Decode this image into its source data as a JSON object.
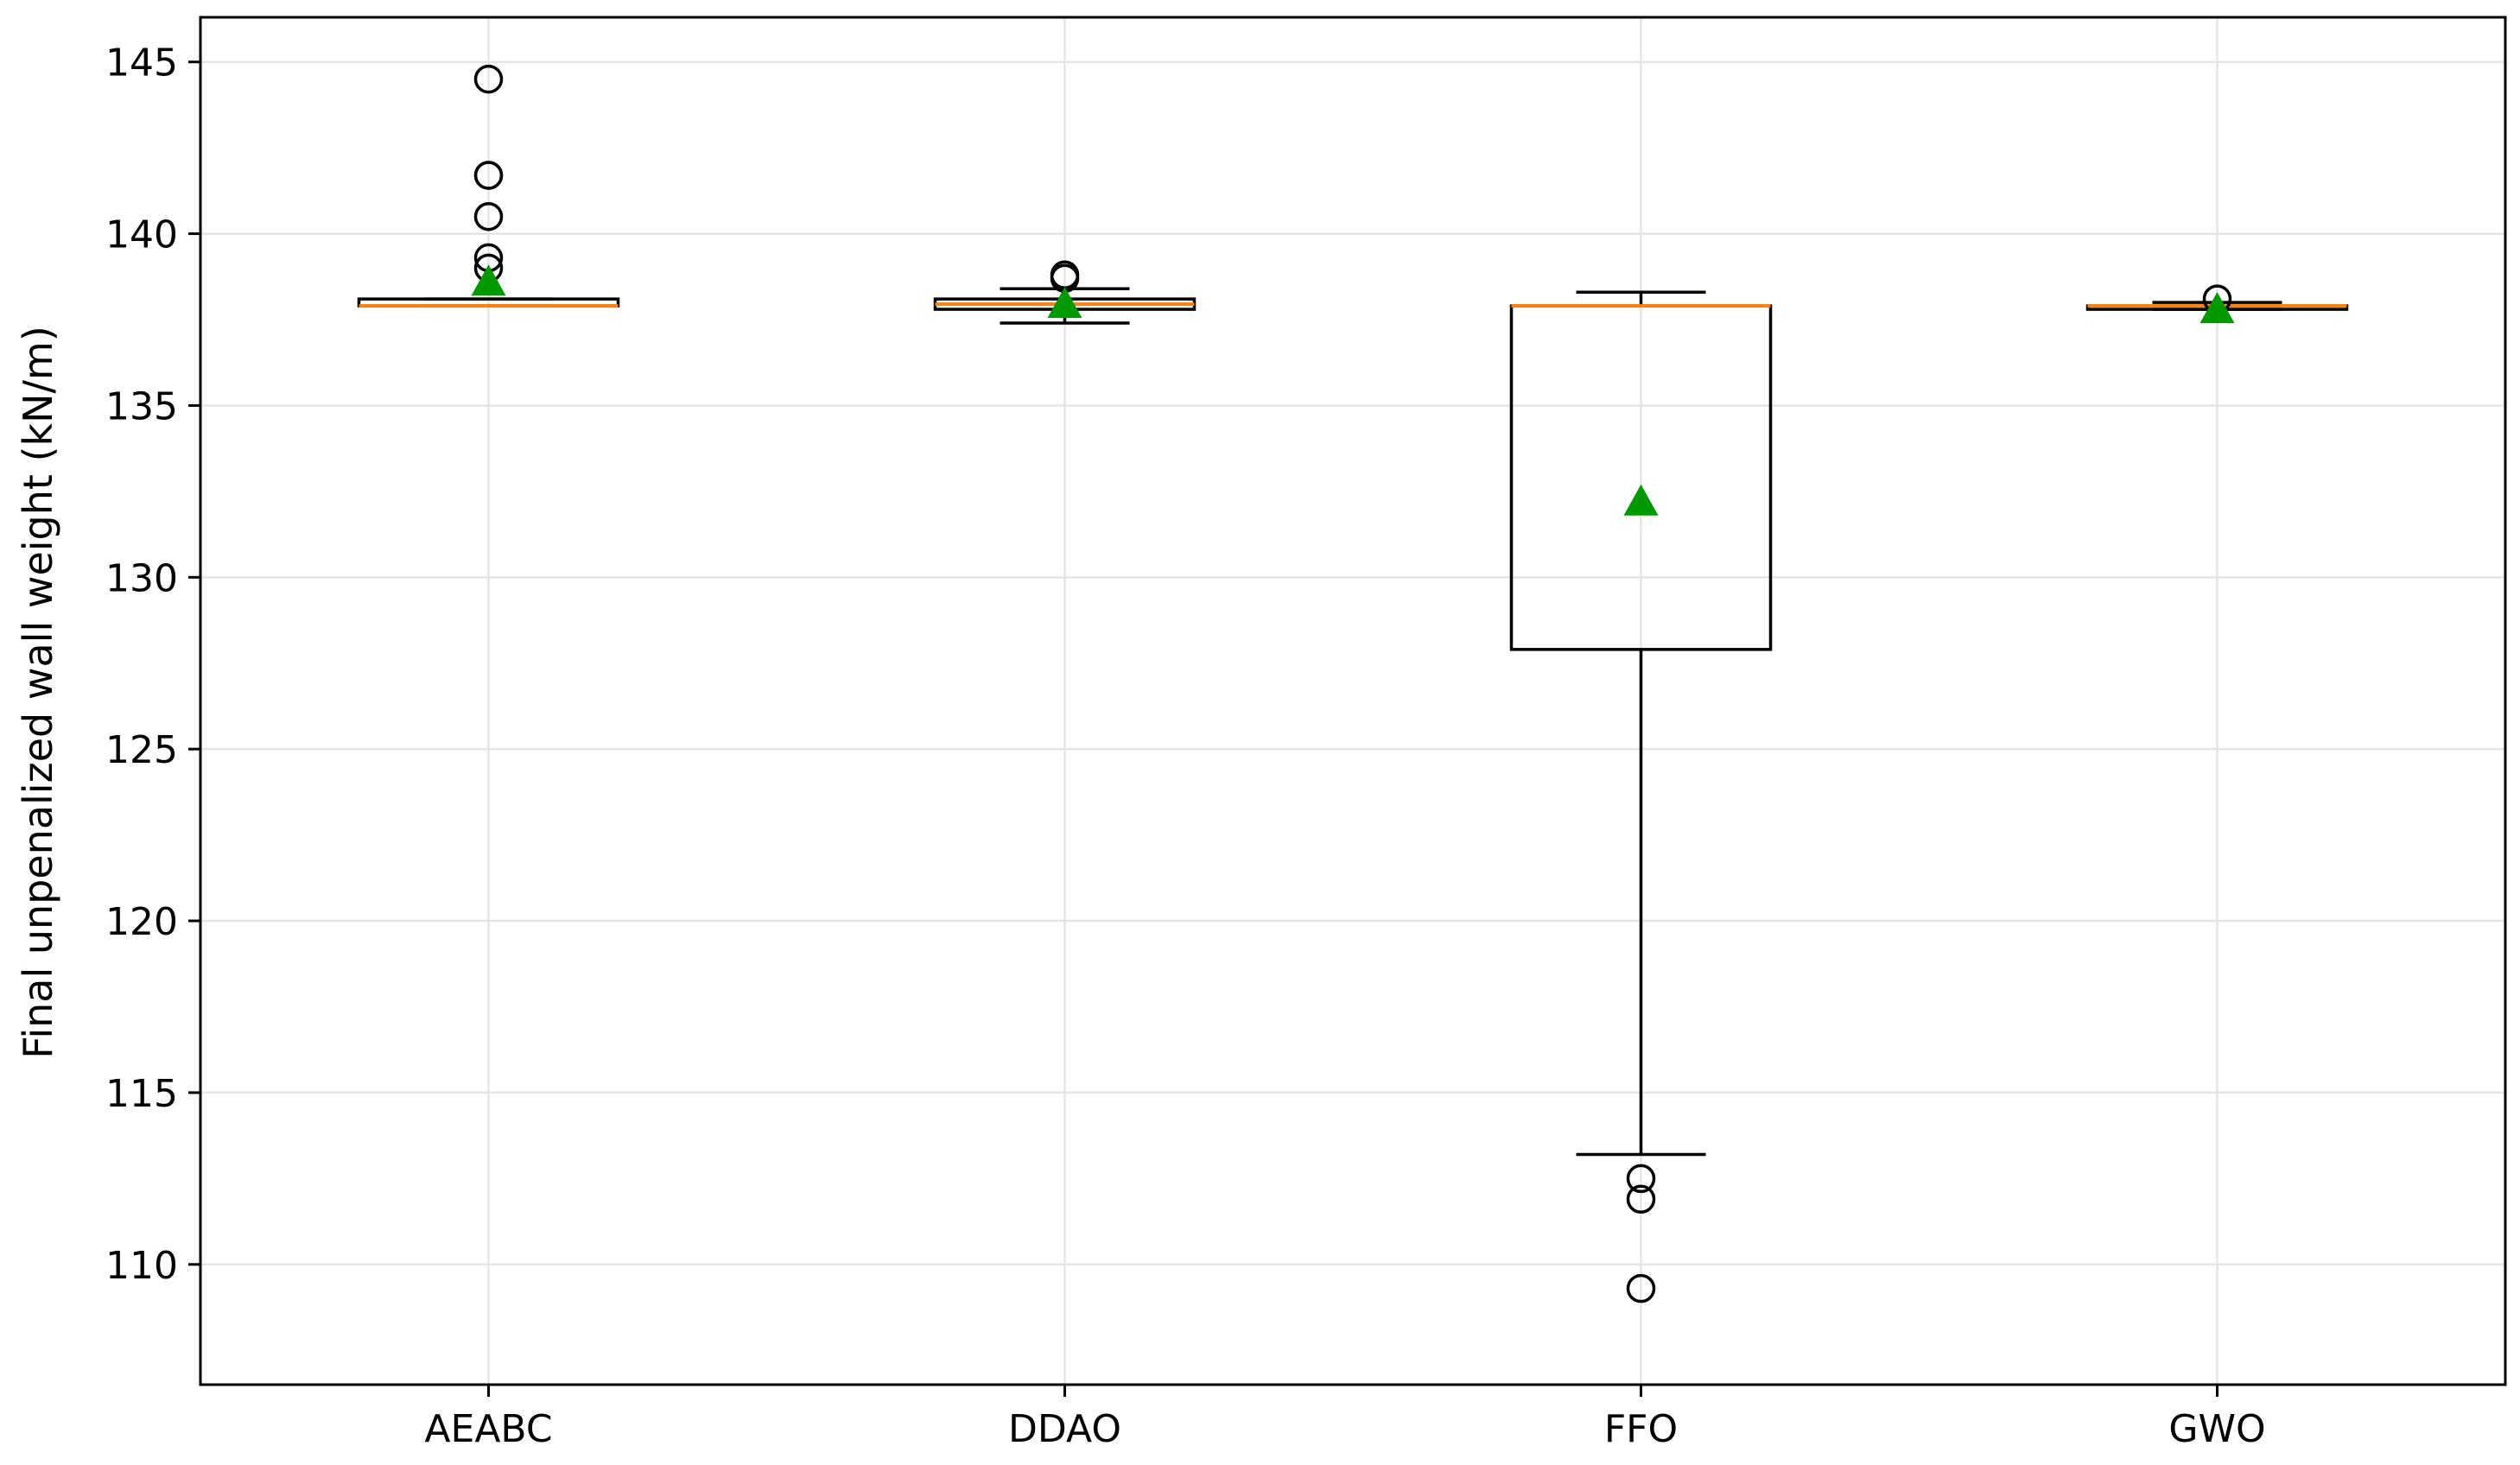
{
  "chart_data": {
    "type": "box",
    "title": "",
    "xlabel": "",
    "ylabel": "Final unpenalized wall weight (kN/m)",
    "categories": [
      "AEABC",
      "DDAO",
      "FFO",
      "GWO"
    ],
    "ylim": [
      106.5,
      146.3
    ],
    "yticks": [
      110,
      115,
      120,
      125,
      130,
      135,
      140,
      145
    ],
    "grid": true,
    "legend": "none",
    "boxes": [
      {
        "category": "AEABC",
        "whisker_low": 137.9,
        "q1": 137.9,
        "median": 137.9,
        "q3": 138.1,
        "whisker_high": 138.1,
        "mean": 138.6,
        "outliers": [
          144.5,
          141.7,
          141.7,
          140.5,
          139.3,
          139.0
        ]
      },
      {
        "category": "DDAO",
        "whisker_low": 137.4,
        "q1": 137.8,
        "median": 137.95,
        "q3": 138.1,
        "whisker_high": 138.4,
        "mean": 137.95,
        "outliers": [
          138.8,
          138.7
        ]
      },
      {
        "category": "FFO",
        "whisker_low": 113.2,
        "q1": 127.9,
        "median": 137.9,
        "q3": 137.9,
        "whisker_high": 138.3,
        "mean": 132.2,
        "outliers": [
          112.5,
          111.9,
          109.3
        ]
      },
      {
        "category": "GWO",
        "whisker_low": 137.8,
        "q1": 137.8,
        "median": 137.9,
        "q3": 137.9,
        "whisker_high": 138.0,
        "mean": 137.8,
        "outliers": [
          138.1
        ]
      }
    ],
    "colors": {
      "box": "#000000",
      "median": "#ff7f0e",
      "mean_marker": "#009900",
      "outlier": "#000000",
      "grid": "#e5e5e5"
    }
  }
}
